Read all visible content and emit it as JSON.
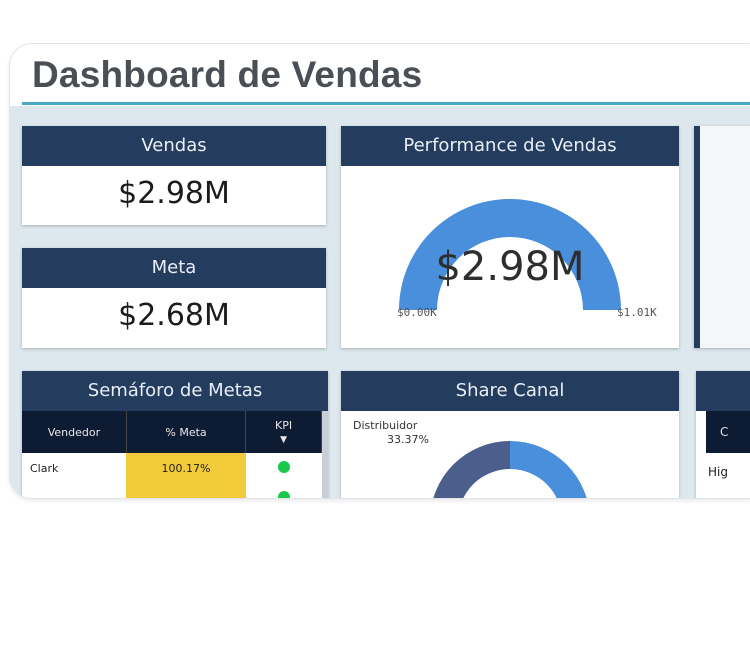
{
  "dashboard": {
    "title": "Dashboard de Vendas"
  },
  "kpis": {
    "vendas": {
      "label": "Vendas",
      "value": "$2.98M"
    },
    "meta": {
      "label": "Meta",
      "value": "$2.68M"
    }
  },
  "performance": {
    "title": "Performance de Vendas",
    "value": "$2.98M",
    "min_label": "$0.00K",
    "max_label": "$1.01K",
    "fill_fraction": 1.0,
    "color": "#4a8fdc"
  },
  "semaforo": {
    "title": "Semáforo de Metas",
    "columns": [
      "Vendedor",
      "% Meta",
      "KPI"
    ],
    "rows": [
      {
        "vendedor": "Clark",
        "meta_pct": "100.17%",
        "kpi": "green-dot"
      }
    ],
    "colors": {
      "header": "#0e1c33",
      "highlight": "#f2cb3a",
      "ok": "#19c94c"
    }
  },
  "share_canal": {
    "title": "Share Canal",
    "label": "Distribuidor",
    "percent": "33.37%",
    "colors": {
      "primary": "#4a8fdc",
      "secondary": "#4b5e8c"
    }
  },
  "partial_panel": {
    "header_fragment": "C",
    "row_fragment": "Hig"
  },
  "theme": {
    "header_bg": "#243c5e",
    "accent_line": "#4aa8c4"
  }
}
